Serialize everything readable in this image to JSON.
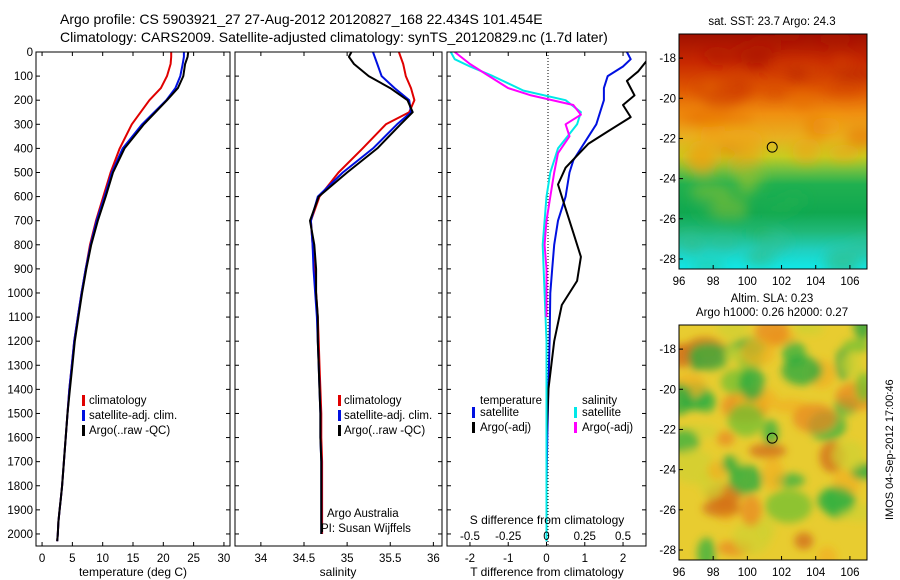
{
  "figure": {
    "title_line1": "Argo profile: CS 5903921_27 27-Aug-2012 20120827_168 22.434S 101.454E",
    "title_line2": "Climatology: CARS2009. Satellite-adjusted climatology: synTS_20120829.nc (1.7d later)",
    "timestamp": "IMOS 04-Sep-2012 17:00:46",
    "credit_line1": "Argo Australia",
    "credit_line2": "PI: Susan Wijffels"
  },
  "colors": {
    "climatology": "#e00000",
    "satellite": "#0010e0",
    "argo": "#000000",
    "s_satellite": "#00e8e8",
    "s_argo": "#ff00ff"
  },
  "chart_data": [
    {
      "type": "line",
      "name": "temperature",
      "xlabel": "temperature (deg C)",
      "xlim": [
        -1,
        31
      ],
      "ylim": [
        2050,
        0
      ],
      "xticks": [
        0,
        5,
        10,
        15,
        20,
        25,
        30
      ],
      "yticks": [
        0,
        100,
        200,
        300,
        400,
        500,
        600,
        700,
        800,
        900,
        1000,
        1100,
        1200,
        1300,
        1400,
        1500,
        1600,
        1700,
        1800,
        1900,
        2000
      ],
      "legend": [
        "climatology",
        "satellite-adj. clim.",
        "Argo(..raw -QC)"
      ],
      "series": [
        {
          "name": "climatology",
          "color": "#e00000",
          "x": [
            21.3,
            21.3,
            21.2,
            20.6,
            19.6,
            17.7,
            14.8,
            12.8,
            11.3,
            10.1,
            8.9,
            7.9,
            7.2,
            6.5,
            5.9,
            5.3,
            4.9,
            4.5,
            4.2,
            3.9,
            3.6,
            3.3,
            3.1,
            2.9,
            2.7,
            2.6,
            2.5
          ],
          "y": [
            0,
            20,
            50,
            100,
            150,
            200,
            300,
            400,
            500,
            600,
            700,
            800,
            900,
            1000,
            1100,
            1200,
            1300,
            1400,
            1500,
            1600,
            1700,
            1800,
            1850,
            1900,
            1950,
            2000,
            2030
          ]
        },
        {
          "name": "satellite-adj. clim.",
          "color": "#0010e0",
          "x": [
            23.4,
            23.4,
            23.2,
            22.8,
            22.0,
            20.5,
            16.5,
            13.3,
            11.5,
            10.3,
            9.0,
            8.0,
            7.2,
            6.5,
            5.9,
            5.3,
            4.9,
            4.5,
            4.2,
            3.9,
            3.6,
            3.3,
            3.1,
            2.9,
            2.7,
            2.6,
            2.5
          ],
          "y": [
            0,
            20,
            50,
            100,
            150,
            200,
            300,
            400,
            500,
            600,
            700,
            800,
            900,
            1000,
            1100,
            1200,
            1300,
            1400,
            1500,
            1600,
            1700,
            1800,
            1850,
            1900,
            1950,
            2000,
            2030
          ]
        },
        {
          "name": "Argo(..raw -QC)",
          "color": "#000000",
          "x": [
            24.1,
            24.0,
            23.6,
            23.3,
            22.4,
            20.6,
            16.8,
            13.6,
            11.7,
            10.5,
            9.2,
            8.1,
            7.3,
            6.6,
            6.0,
            5.4,
            5.0,
            4.6,
            4.2,
            3.9,
            3.6,
            3.3,
            3.1,
            2.9,
            2.7,
            2.6,
            2.5
          ],
          "y": [
            0,
            20,
            50,
            100,
            150,
            200,
            300,
            400,
            500,
            600,
            700,
            800,
            900,
            1000,
            1100,
            1200,
            1300,
            1400,
            1500,
            1600,
            1700,
            1800,
            1850,
            1900,
            1950,
            2000,
            2030
          ]
        }
      ]
    },
    {
      "type": "line",
      "name": "salinity",
      "xlabel": "salinity",
      "xlim": [
        33.7,
        36.1
      ],
      "ylim": [
        2050,
        0
      ],
      "xticks": [
        34,
        34.5,
        35,
        35.5,
        36
      ],
      "legend": [
        "climatology",
        "satellite-adj. clim.",
        "Argo(..raw -QC)"
      ],
      "series": [
        {
          "name": "climatology",
          "color": "#e00000",
          "x": [
            35.6,
            35.62,
            35.65,
            35.68,
            35.74,
            35.78,
            35.72,
            35.45,
            35.18,
            34.9,
            34.68,
            34.58,
            34.6,
            34.62,
            34.64,
            34.66,
            34.67,
            34.68,
            34.69,
            34.7,
            34.7,
            34.71,
            34.71,
            34.71,
            34.71
          ],
          "y": [
            0,
            20,
            50,
            100,
            150,
            200,
            250,
            300,
            400,
            500,
            600,
            700,
            800,
            900,
            1000,
            1100,
            1200,
            1300,
            1400,
            1500,
            1600,
            1700,
            1800,
            1900,
            2000
          ]
        },
        {
          "name": "satellite-adj. clim.",
          "color": "#0010e0",
          "x": [
            35.3,
            35.32,
            35.35,
            35.4,
            35.55,
            35.72,
            35.74,
            35.58,
            35.3,
            34.95,
            34.66,
            34.58,
            34.6,
            34.61,
            34.63,
            34.65,
            34.66,
            34.67,
            34.68,
            34.69,
            34.69,
            34.7,
            34.7,
            34.7,
            34.7
          ],
          "y": [
            0,
            20,
            50,
            100,
            150,
            200,
            250,
            300,
            400,
            500,
            600,
            700,
            800,
            900,
            1000,
            1100,
            1200,
            1300,
            1400,
            1500,
            1600,
            1700,
            1800,
            1900,
            2000
          ]
        },
        {
          "name": "Argo(..raw -QC)",
          "color": "#000000",
          "x": [
            35.05,
            35.02,
            35.08,
            35.25,
            35.5,
            35.7,
            35.76,
            35.62,
            35.35,
            35.0,
            34.67,
            34.57,
            34.62,
            34.64,
            34.64,
            34.66,
            34.66,
            34.67,
            34.68,
            34.69,
            34.69,
            34.7,
            34.7,
            34.7,
            34.7
          ],
          "y": [
            0,
            20,
            50,
            100,
            150,
            200,
            250,
            300,
            400,
            500,
            600,
            700,
            800,
            900,
            1000,
            1100,
            1200,
            1300,
            1400,
            1500,
            1600,
            1700,
            1800,
            1900,
            2000
          ]
        }
      ]
    },
    {
      "type": "line",
      "name": "difference",
      "xlabel_bottom": "T difference from climatology",
      "xlabel_top": "S difference from climatology",
      "xlim": [
        -2.6,
        2.6
      ],
      "ylim": [
        2050,
        0
      ],
      "xticks": [
        -2,
        -1,
        0,
        1,
        2
      ],
      "xticks_s": [
        "-0.5",
        "-0.25",
        "0",
        "0.25",
        "0.5"
      ],
      "xticks_s_pos": [
        -2,
        -1,
        0,
        1,
        2
      ],
      "legend_t_title": "temperature",
      "legend_s_title": "salinity",
      "legend_t": [
        "satellite",
        "Argo(-adj)"
      ],
      "legend_s": [
        "satellite",
        "Argo(-adj)"
      ],
      "series": [
        {
          "name": "T satellite",
          "color": "#0010e0",
          "x": [
            2.1,
            2.2,
            2.0,
            1.6,
            1.5,
            1.5,
            1.4,
            1.3,
            1.1,
            0.9,
            0.7,
            0.6,
            0.5,
            0.3,
            0.2,
            0.15,
            0.1,
            0.08,
            0.05,
            0.02,
            0.0,
            0.0,
            0.0
          ],
          "y": [
            0,
            30,
            60,
            100,
            150,
            200,
            250,
            300,
            350,
            400,
            450,
            500,
            600,
            700,
            800,
            900,
            1000,
            1200,
            1400,
            1600,
            1800,
            1950,
            2030
          ]
        },
        {
          "name": "T Argo(-adj)",
          "color": "#000000",
          "x": [
            2.8,
            2.6,
            2.4,
            2.1,
            2.3,
            2.0,
            2.2,
            1.6,
            1.1,
            0.8,
            0.5,
            0.3,
            0.5,
            0.7,
            0.9,
            0.8,
            0.4,
            0.2,
            0.05,
            0.0,
            0.0,
            0.0
          ],
          "y": [
            0,
            40,
            80,
            120,
            180,
            220,
            270,
            330,
            380,
            430,
            480,
            550,
            650,
            750,
            850,
            950,
            1050,
            1200,
            1400,
            1600,
            1800,
            2030
          ]
        },
        {
          "name": "S satellite",
          "color": "#00e8e8",
          "x": [
            -2.5,
            -2.4,
            -2.0,
            -1.4,
            -0.6,
            0.5,
            0.9,
            0.8,
            0.3,
            0.1,
            0.0,
            -0.05,
            -0.1,
            -0.05,
            0.0,
            0.0,
            0.0
          ],
          "y": [
            0,
            30,
            60,
            100,
            160,
            200,
            250,
            300,
            400,
            500,
            600,
            700,
            800,
            1000,
            1200,
            1600,
            2030
          ]
        },
        {
          "name": "S Argo(-adj)",
          "color": "#ff00ff",
          "x": [
            -2.4,
            -2.0,
            -1.5,
            -1.0,
            -0.4,
            0.7,
            0.9,
            0.5,
            0.6,
            0.3,
            0.2,
            0.1,
            0.0,
            -0.05,
            0.0,
            0.0,
            0.0
          ],
          "y": [
            0,
            50,
            100,
            150,
            180,
            220,
            260,
            300,
            350,
            420,
            500,
            600,
            700,
            800,
            900,
            1000,
            1100
          ]
        }
      ]
    },
    {
      "type": "heatmap",
      "name": "sst-map",
      "title": "sat. SST: 23.7 Argo: 24.3",
      "xlim": [
        96,
        107
      ],
      "ylim": [
        -28.5,
        -16.8
      ],
      "xticks": [
        96,
        98,
        100,
        102,
        104,
        106
      ],
      "yticks": [
        -18,
        -20,
        -22,
        -24,
        -26,
        -28
      ],
      "marker": {
        "lon": 101.454,
        "lat": -22.434
      }
    },
    {
      "type": "heatmap",
      "name": "sla-map",
      "title_line1": "Altim. SLA: 0.23",
      "title_line2": "Argo h1000: 0.26 h2000: 0.27",
      "xlim": [
        96,
        107
      ],
      "ylim": [
        -28.5,
        -16.8
      ],
      "xticks": [
        96,
        98,
        100,
        102,
        104,
        106
      ],
      "yticks": [
        -18,
        -20,
        -22,
        -24,
        -26,
        -28
      ],
      "marker": {
        "lon": 101.454,
        "lat": -22.434
      }
    }
  ]
}
